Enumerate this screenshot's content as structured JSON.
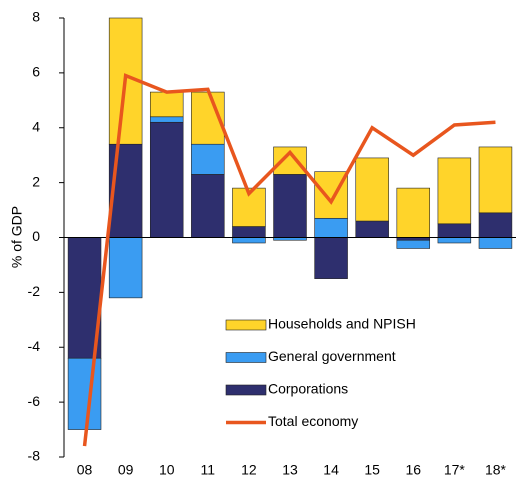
{
  "chart_data": {
    "type": "bar",
    "y_label": "% of GDP",
    "categories": [
      "08",
      "09",
      "10",
      "11",
      "12",
      "13",
      "14",
      "15",
      "16",
      "17*",
      "18*"
    ],
    "series": [
      {
        "name": "Households and NPISH",
        "color": "#ffd42a",
        "values": [
          0,
          4.6,
          0.9,
          1.9,
          1.4,
          1.0,
          1.7,
          2.3,
          1.8,
          2.4,
          2.4
        ]
      },
      {
        "name": "General government",
        "color": "#3a9cf2",
        "values": [
          -2.6,
          -2.2,
          0.2,
          1.1,
          -0.2,
          -0.1,
          0.7,
          0,
          -0.3,
          -0.2,
          -0.4
        ]
      },
      {
        "name": "Corporations",
        "color": "#2e2f6e",
        "values": [
          -4.4,
          3.4,
          4.2,
          2.3,
          0.4,
          2.3,
          -1.5,
          0.6,
          -0.1,
          0.5,
          0.9
        ]
      },
      {
        "name": "Total economy",
        "type": "line",
        "color": "#e8561e",
        "values": [
          -7.6,
          5.9,
          5.3,
          5.4,
          1.6,
          3.1,
          1.3,
          4.0,
          3.0,
          4.1,
          4.2
        ]
      }
    ],
    "ylim": [
      -8,
      8
    ],
    "yticks": [
      -8,
      -6,
      -4,
      -2,
      0,
      2,
      4,
      6,
      8
    ],
    "grid": false
  }
}
